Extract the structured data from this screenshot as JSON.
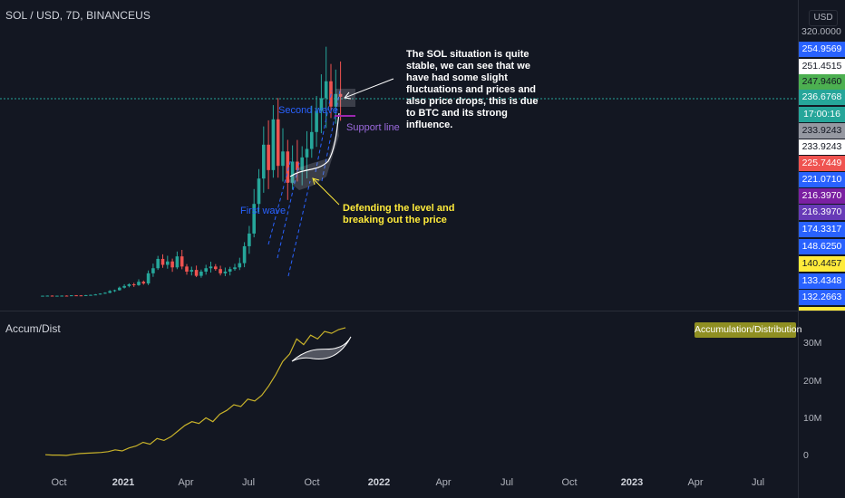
{
  "symbol_header": "SOL / USD, 7D, BINANCEUS",
  "currency": "USD",
  "price_axis_top": "320.0000",
  "price_labels": [
    {
      "text": "254.9569",
      "bg": "#2962ff",
      "fg": "#ffffff"
    },
    {
      "text": "251.4515",
      "bg": "#ffffff",
      "fg": "#131722"
    },
    {
      "text": "247.9460",
      "bg": "#4caf50",
      "fg": "#131722"
    },
    {
      "text": "236.6768",
      "bg": "#26a69a",
      "fg": "#ffffff"
    },
    {
      "text": "17:00:16",
      "bg": "#26a69a",
      "fg": "#ffffff"
    },
    {
      "text": "233.9243",
      "bg": "#9598a1",
      "fg": "#131722"
    },
    {
      "text": "233.9243",
      "bg": "#ffffff",
      "fg": "#131722"
    },
    {
      "text": "225.7449",
      "bg": "#ef5350",
      "fg": "#ffffff"
    },
    {
      "text": "221.0710",
      "bg": "#2962ff",
      "fg": "#ffffff"
    },
    {
      "text": "216.3970",
      "bg": "#7b1fa2",
      "fg": "#ffffff"
    },
    {
      "text": "216.3970",
      "bg": "#673ab7",
      "fg": "#ffffff"
    },
    {
      "text": "174.3317",
      "bg": "#2962ff",
      "fg": "#ffffff"
    },
    {
      "text": "148.6250",
      "bg": "#2962ff",
      "fg": "#ffffff"
    },
    {
      "text": "140.4457",
      "bg": "#ffeb3b",
      "fg": "#131722"
    },
    {
      "text": "133.4348",
      "bg": "#2962ff",
      "fg": "#ffffff"
    },
    {
      "text": "132.2663",
      "bg": "#2962ff",
      "fg": "#ffffff"
    }
  ],
  "annotations": {
    "second_wave": "Second wave",
    "first_wave": "First wave",
    "support_line": "Support line",
    "defending": [
      "Defending the level and",
      "breaking out the price"
    ],
    "note": [
      "The SOL situation is quite",
      "stable, we can see that we",
      "have had some slight",
      "fluctuations and prices and",
      "also price drops, this is due",
      "to BTC and its strong",
      "influence."
    ]
  },
  "oscillator": {
    "name": "Accum/Dist",
    "badge": "Accumulation/Distribution",
    "ticks": [
      "30M",
      "20M",
      "10M",
      "0"
    ]
  },
  "time_axis": [
    {
      "label": "Oct",
      "bold": false
    },
    {
      "label": "2021",
      "bold": true
    },
    {
      "label": "Apr",
      "bold": false
    },
    {
      "label": "Jul",
      "bold": false
    },
    {
      "label": "Oct",
      "bold": false
    },
    {
      "label": "2022",
      "bold": true
    },
    {
      "label": "Apr",
      "bold": false
    },
    {
      "label": "Jul",
      "bold": false
    },
    {
      "label": "Oct",
      "bold": false
    },
    {
      "label": "2023",
      "bold": true
    },
    {
      "label": "Apr",
      "bold": false
    },
    {
      "label": "Jul",
      "bold": false
    }
  ],
  "chart_data": {
    "type": "candlestick",
    "timeframe": "7D",
    "y_scale": "linear",
    "ylim": [
      0,
      320
    ],
    "candles_approx_close": [
      1.5,
      1.6,
      1.4,
      1.5,
      1.6,
      1.5,
      2,
      1.9,
      1.8,
      2.2,
      2.5,
      3,
      4,
      5,
      7,
      8,
      11,
      13,
      15,
      14,
      18,
      16,
      28,
      34,
      45,
      38,
      42,
      35,
      48,
      36,
      30,
      32,
      25,
      30,
      34,
      36,
      33,
      28,
      30,
      33,
      35,
      40,
      60,
      75,
      110,
      140,
      180,
      150,
      210,
      155,
      172,
      135,
      160,
      150,
      165,
      175,
      195,
      220,
      235,
      255,
      225,
      240,
      236.68
    ],
    "accum_dist_series_millions": [
      0.2,
      0.1,
      0.1,
      0.0,
      0.3,
      0.5,
      0.6,
      0.7,
      0.8,
      1.0,
      1.5,
      1.2,
      2.0,
      2.5,
      3.5,
      3.0,
      4.5,
      4.0,
      5.0,
      6.5,
      8.0,
      9.0,
      8.5,
      10.0,
      9.0,
      11.0,
      12.0,
      13.5,
      13.0,
      15.0,
      14.5,
      16.0,
      18.5,
      21.5,
      25.0,
      27.0,
      31.0,
      29.5,
      32.0,
      31.0,
      33.0,
      32.5,
      33.5,
      34.0
    ]
  }
}
